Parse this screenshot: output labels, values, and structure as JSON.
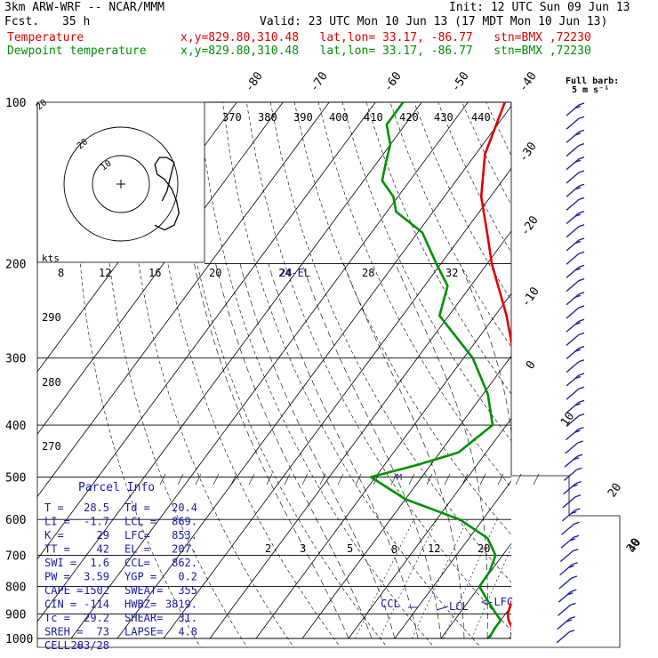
{
  "header": {
    "model": "3km ARW-WRF -- NCAR/MMM",
    "init": "Init: 12 UTC Sun 09 Jun 13",
    "fcst_label": "Fcst.",
    "fcst_value": "35 h",
    "valid": "Valid: 23 UTC Mon 10 Jun 13 (17 MDT Mon 10 Jun 13)",
    "temp_label": "Temperature",
    "dew_label": "Dewpoint temperature",
    "temp_info": "x,y=829.80,310.48   lat,lon= 33.17, -86.77   stn=BMX ,72230",
    "dew_info": "x,y=829.80,310.48   lat,lon= 33.17, -86.77   stn=BMX ,72230"
  },
  "colors": {
    "temperature": "#e00000",
    "dewpoint": "#009000",
    "labels": "#1a1aa0"
  },
  "chart_data": {
    "type": "line",
    "chart_kind": "skew-T log-P sounding",
    "y_axis": {
      "label": "pressure (hPa)",
      "ticks": [
        100,
        200,
        300,
        400,
        500,
        600,
        700,
        800,
        900,
        1000
      ],
      "scale": "log",
      "range": [
        1000,
        100
      ]
    },
    "temp_ticks_top": [
      "-80",
      "-70",
      "-60",
      "-50",
      "-40"
    ],
    "temp_ticks_right": [
      "-30",
      "-20",
      "-10",
      "0",
      "10",
      "20",
      "30",
      "40"
    ],
    "theta_e_labels": [
      "370",
      "380",
      "390",
      "400",
      "410",
      "420",
      "430",
      "440"
    ],
    "theta_left_labels": [
      "290",
      "280",
      "270"
    ],
    "mixing_ratio_labels": [
      "2",
      "3",
      "5",
      "8",
      "12",
      "20"
    ],
    "hodograph": {
      "unit_label": "kts",
      "speed_ticks": [
        "8",
        "12",
        "16",
        "20",
        "24",
        "28",
        "32"
      ],
      "ring_labels": [
        "20",
        "10"
      ]
    },
    "barb_legend": {
      "title": "Full barb:",
      "value": "5 m s⁻¹"
    },
    "level_labels": {
      "el": "24-EL",
      "ccl": "CCL",
      "lcl": "LCL",
      "lfc": "<-LFC",
      "m": "M"
    },
    "series": [
      {
        "name": "Temperature",
        "points": [
          [
            1000,
            27
          ],
          [
            960,
            24
          ],
          [
            925,
            21.7
          ],
          [
            900,
            20.5
          ],
          [
            850,
            19.3
          ],
          [
            800,
            17.8
          ],
          [
            750,
            15.5
          ],
          [
            700,
            13.5
          ],
          [
            650,
            11.5
          ],
          [
            600,
            9
          ],
          [
            550,
            6.3
          ],
          [
            500,
            2.4
          ],
          [
            450,
            -1.8
          ],
          [
            400,
            -6.5
          ],
          [
            350,
            -12
          ],
          [
            300,
            -19
          ],
          [
            250,
            -27.5
          ],
          [
            200,
            -39
          ],
          [
            175,
            -45
          ],
          [
            150,
            -52
          ],
          [
            125,
            -58
          ],
          [
            100,
            -62
          ]
        ]
      },
      {
        "name": "Dewpoint temperature",
        "points": [
          [
            1000,
            20.4
          ],
          [
            960,
            20
          ],
          [
            925,
            20
          ],
          [
            900,
            18
          ],
          [
            850,
            14
          ],
          [
            800,
            10
          ],
          [
            750,
            9.8
          ],
          [
            700,
            8.5
          ],
          [
            650,
            4
          ],
          [
            600,
            -5
          ],
          [
            550,
            -20
          ],
          [
            500,
            -31
          ],
          [
            475,
            -23
          ],
          [
            450,
            -16
          ],
          [
            400,
            -13
          ],
          [
            350,
            -19
          ],
          [
            300,
            -28
          ],
          [
            250,
            -42
          ],
          [
            220,
            -45
          ],
          [
            200,
            -51
          ],
          [
            175,
            -59
          ],
          [
            160,
            -68
          ],
          [
            150,
            -71
          ],
          [
            140,
            -76
          ],
          [
            130,
            -78
          ],
          [
            120,
            -80
          ],
          [
            110,
            -84
          ],
          [
            100,
            -84
          ]
        ]
      }
    ],
    "hodograph_trace_kts": [
      [
        17,
        7
      ],
      [
        19,
        3
      ],
      [
        20,
        -1
      ],
      [
        21,
        -5
      ],
      [
        22,
        -9
      ],
      [
        19,
        -11
      ],
      [
        16,
        -11
      ],
      [
        14,
        -8
      ],
      [
        15,
        -4
      ],
      [
        18,
        -2
      ],
      [
        21,
        2
      ],
      [
        23,
        7
      ],
      [
        24,
        12
      ],
      [
        22,
        17
      ],
      [
        18,
        19
      ],
      [
        14,
        17
      ]
    ]
  },
  "parcel": {
    "title": "Parcel Info",
    "rows": [
      [
        "T  =",
        "28.5",
        "Td =",
        "20.4"
      ],
      [
        "LI =",
        "-1.7",
        "LCL =",
        "869."
      ],
      [
        "K  =",
        "29",
        "LFC=",
        "853."
      ],
      [
        "TT =",
        "42",
        "EL =",
        "207."
      ],
      [
        "SWI =",
        "1.6",
        "CCL=",
        "862."
      ],
      [
        "PW =",
        "3.59",
        "YGP =",
        "0.2"
      ],
      [
        "CAPE =",
        "1502",
        "SWEAT=",
        "355"
      ],
      [
        "CIN =",
        "-114",
        "HWBZ=",
        "3819."
      ],
      [
        "Tc =",
        "29.2",
        "SHEAR=",
        "31."
      ],
      [
        "SREH =",
        "73",
        "LAPSE=",
        "4.8"
      ],
      [
        "CELL =",
        "283/28",
        "",
        ""
      ]
    ]
  }
}
